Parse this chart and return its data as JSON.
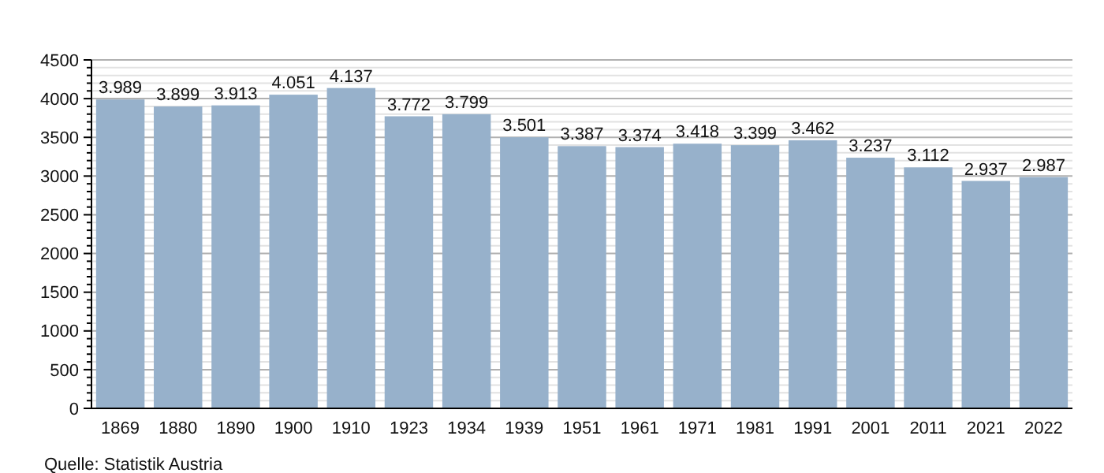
{
  "chart_data": {
    "type": "bar",
    "categories": [
      "1869",
      "1880",
      "1890",
      "1900",
      "1910",
      "1923",
      "1934",
      "1939",
      "1951",
      "1961",
      "1971",
      "1981",
      "1991",
      "2001",
      "2011",
      "2021",
      "2022"
    ],
    "values": [
      3989,
      3899,
      3913,
      4051,
      4137,
      3772,
      3799,
      3501,
      3387,
      3374,
      3418,
      3399,
      3462,
      3237,
      3112,
      2937,
      2987
    ],
    "value_labels": [
      "3.989",
      "3.899",
      "3.913",
      "4.051",
      "4.137",
      "3.772",
      "3.799",
      "3.501",
      "3.387",
      "3.374",
      "3.418",
      "3.399",
      "3.462",
      "3.237",
      "3.112",
      "2.937",
      "2.987"
    ],
    "color": "#97b1cb",
    "ylim": [
      0,
      4500
    ],
    "yticks": [
      0,
      {
        "value": 100,
        "label": null
      },
      {
        "value": 200,
        "label": null
      },
      {
        "value": 300,
        "label": null
      },
      {
        "value": 400,
        "label": null
      },
      500,
      {
        "value": 600,
        "label": null
      },
      {
        "value": 700,
        "label": null
      },
      {
        "value": 800,
        "label": null
      },
      {
        "value": 900,
        "label": null
      },
      1000,
      {
        "value": 1100,
        "label": null
      },
      {
        "value": 1200,
        "label": null
      },
      {
        "value": 1300,
        "label": null
      },
      {
        "value": 1400,
        "label": null
      },
      1500,
      {
        "value": 1600,
        "label": null
      },
      {
        "value": 1700,
        "label": null
      },
      {
        "value": 1800,
        "label": null
      },
      {
        "value": 1900,
        "label": null
      },
      2000,
      {
        "value": 2100,
        "label": null
      },
      {
        "value": 2200,
        "label": null
      },
      {
        "value": 2300,
        "label": null
      },
      {
        "value": 2400,
        "label": null
      },
      2500,
      {
        "value": 2600,
        "label": null
      },
      {
        "value": 2700,
        "label": null
      },
      {
        "value": 2800,
        "label": null
      },
      {
        "value": 2900,
        "label": null
      },
      3000,
      {
        "value": 3100,
        "label": null
      },
      {
        "value": 3200,
        "label": null
      },
      {
        "value": 3300,
        "label": null
      },
      {
        "value": 3400,
        "label": null
      },
      3500,
      {
        "value": 3600,
        "label": null
      },
      {
        "value": 3700,
        "label": null
      },
      {
        "value": 3800,
        "label": null
      },
      {
        "value": 3900,
        "label": null
      },
      4000,
      {
        "value": 4100,
        "label": null
      },
      {
        "value": 4200,
        "label": null
      },
      {
        "value": 4300,
        "label": null
      },
      {
        "value": 4400,
        "label": null
      },
      4500
    ],
    "grid": "y",
    "annotations": [
      "Quelle: Statistik Austria"
    ]
  }
}
